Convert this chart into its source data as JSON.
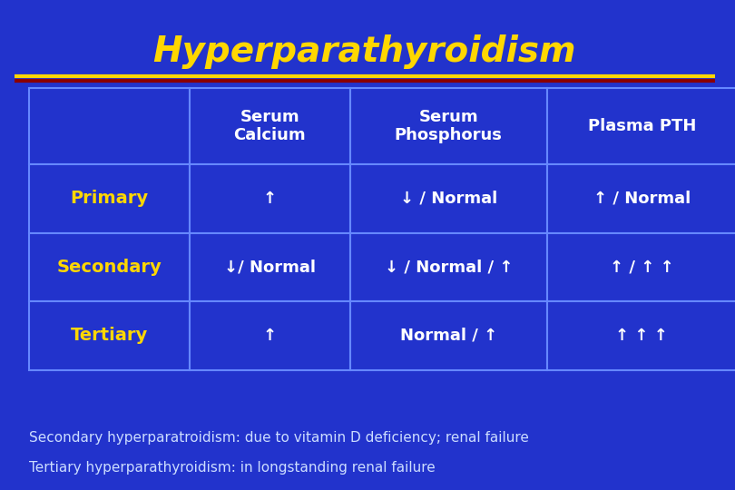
{
  "title": "Hyperparathyroidism",
  "title_color": "#FFD700",
  "bg_color": "#2233CC",
  "line1_color": "#FFD700",
  "line2_color": "#8B0000",
  "table_border_color": "#6688FF",
  "header_text_color": "#FFFFFF",
  "row_label_color": "#FFD700",
  "row_data_color": "#FFFFFF",
  "footer_color": "#CCDDFF",
  "col_headers": [
    "Serum\nCalcium",
    "Serum\nPhosphorus",
    "Plasma PTH"
  ],
  "row_labels": [
    "Primary",
    "Secondary",
    "Tertiary"
  ],
  "data": [
    [
      "↑",
      "↓ / Normal",
      "↑ / Normal"
    ],
    [
      "↓/ Normal",
      "↓ / Normal / ↑",
      "↑ / ↑ ↑"
    ],
    [
      "↑",
      "Normal / ↑",
      "↑ ↑ ↑"
    ]
  ],
  "footer_line1": "Secondary hyperparatroidism: due to vitamin D deficiency; renal failure",
  "footer_line2": "Tertiary hyperparathyroidism: in longstanding renal failure",
  "figsize": [
    8.1,
    5.4
  ],
  "dpi": 100
}
